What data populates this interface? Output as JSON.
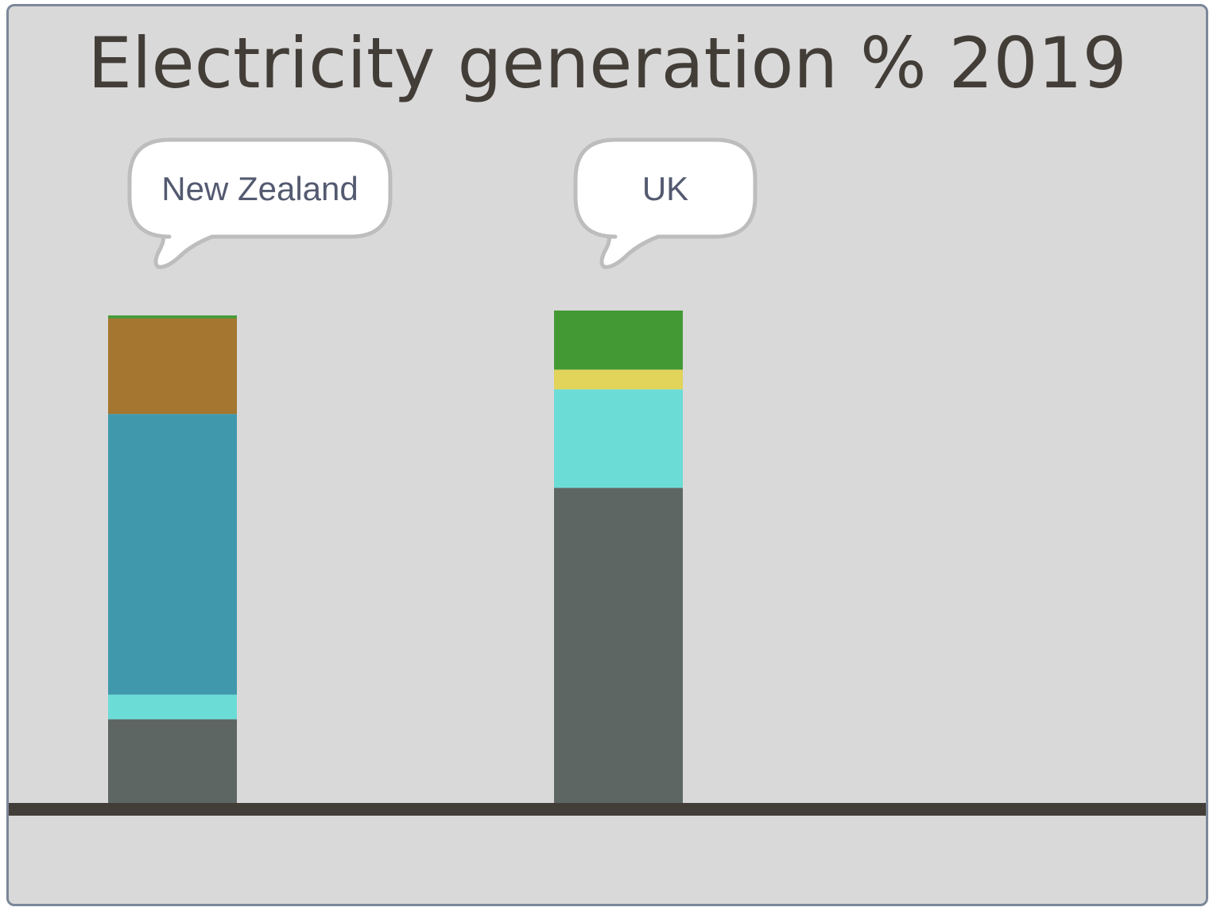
{
  "chart_data": {
    "type": "bar",
    "stacked": true,
    "title": "Electricity generation % 2019",
    "categories": [
      "New Zealand",
      "UK"
    ],
    "colors": {
      "segment_1": "#5e6664",
      "segment_2": "#6cdcd7",
      "segment_3": "#4098ac",
      "segment_4": "#a4762f",
      "segment_5": "#e2d35a",
      "segment_6": "#439a35"
    },
    "series": [
      {
        "color_key": "segment_1",
        "values": [
          17,
          64
        ]
      },
      {
        "color_key": "segment_2",
        "values": [
          5,
          20
        ]
      },
      {
        "color_key": "segment_3",
        "values": [
          57,
          0
        ]
      },
      {
        "color_key": "segment_4",
        "values": [
          19.4,
          0
        ]
      },
      {
        "color_key": "segment_5",
        "values": [
          0,
          4
        ]
      },
      {
        "color_key": "segment_6",
        "values": [
          0.6,
          12
        ]
      }
    ],
    "totals": [
      100,
      100
    ],
    "ylim": [
      0,
      100
    ],
    "grid": false,
    "legend": "none",
    "baseline_color": "#433d38",
    "callout_text_color": "#535a70"
  }
}
